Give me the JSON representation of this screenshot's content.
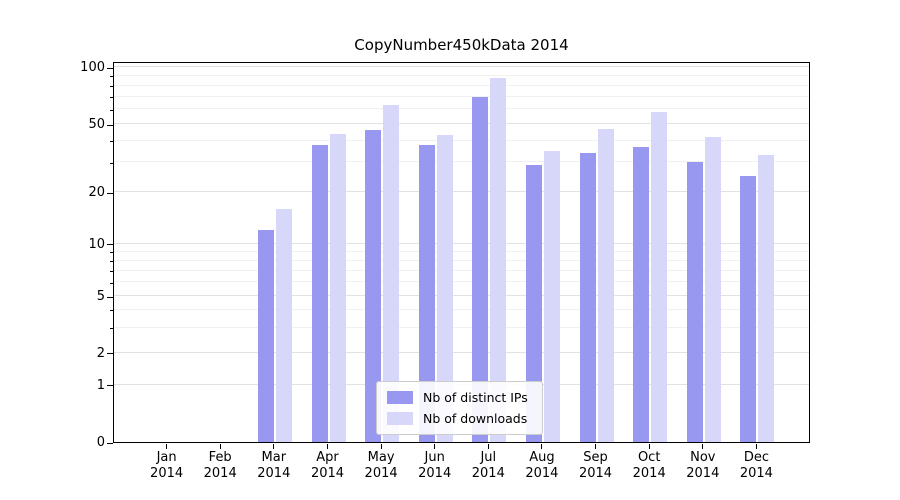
{
  "chart_data": {
    "type": "bar",
    "title": "CopyNumber450kData 2014",
    "categories": [
      "Jan",
      "Feb",
      "Mar",
      "Apr",
      "May",
      "Jun",
      "Jul",
      "Aug",
      "Sep",
      "Oct",
      "Nov",
      "Dec"
    ],
    "x_year_label": "2014",
    "series": [
      {
        "name": "Nb of distinct IPs",
        "color": "#9898f0",
        "values": [
          0,
          0,
          12,
          38,
          46,
          38,
          70,
          29,
          34,
          37,
          30,
          25
        ]
      },
      {
        "name": "Nb of downloads",
        "color": "#d7d7fa",
        "values": [
          0,
          0,
          16,
          44,
          63,
          43,
          88,
          35,
          47,
          58,
          42,
          33
        ]
      }
    ],
    "yticks": [
      0,
      1,
      2,
      5,
      10,
      20,
      50,
      100
    ],
    "ytick_labels": [
      "0",
      "1",
      "2",
      "5",
      "10",
      "20",
      "50",
      "100"
    ],
    "minor_yticks": [
      3,
      4,
      6,
      7,
      8,
      9,
      30,
      40,
      60,
      70,
      80,
      90
    ],
    "y_scale": "log-like",
    "ylim": [
      0,
      100
    ],
    "grid": true,
    "legend_position": "bottom-center"
  },
  "colors": {
    "distinct_ips": "#9898f0",
    "downloads": "#d7d7fa",
    "grid_major": "#e2e2e2",
    "grid_minor": "#f0f0f0",
    "axis": "#000000",
    "legend_border": "#cccccc"
  }
}
